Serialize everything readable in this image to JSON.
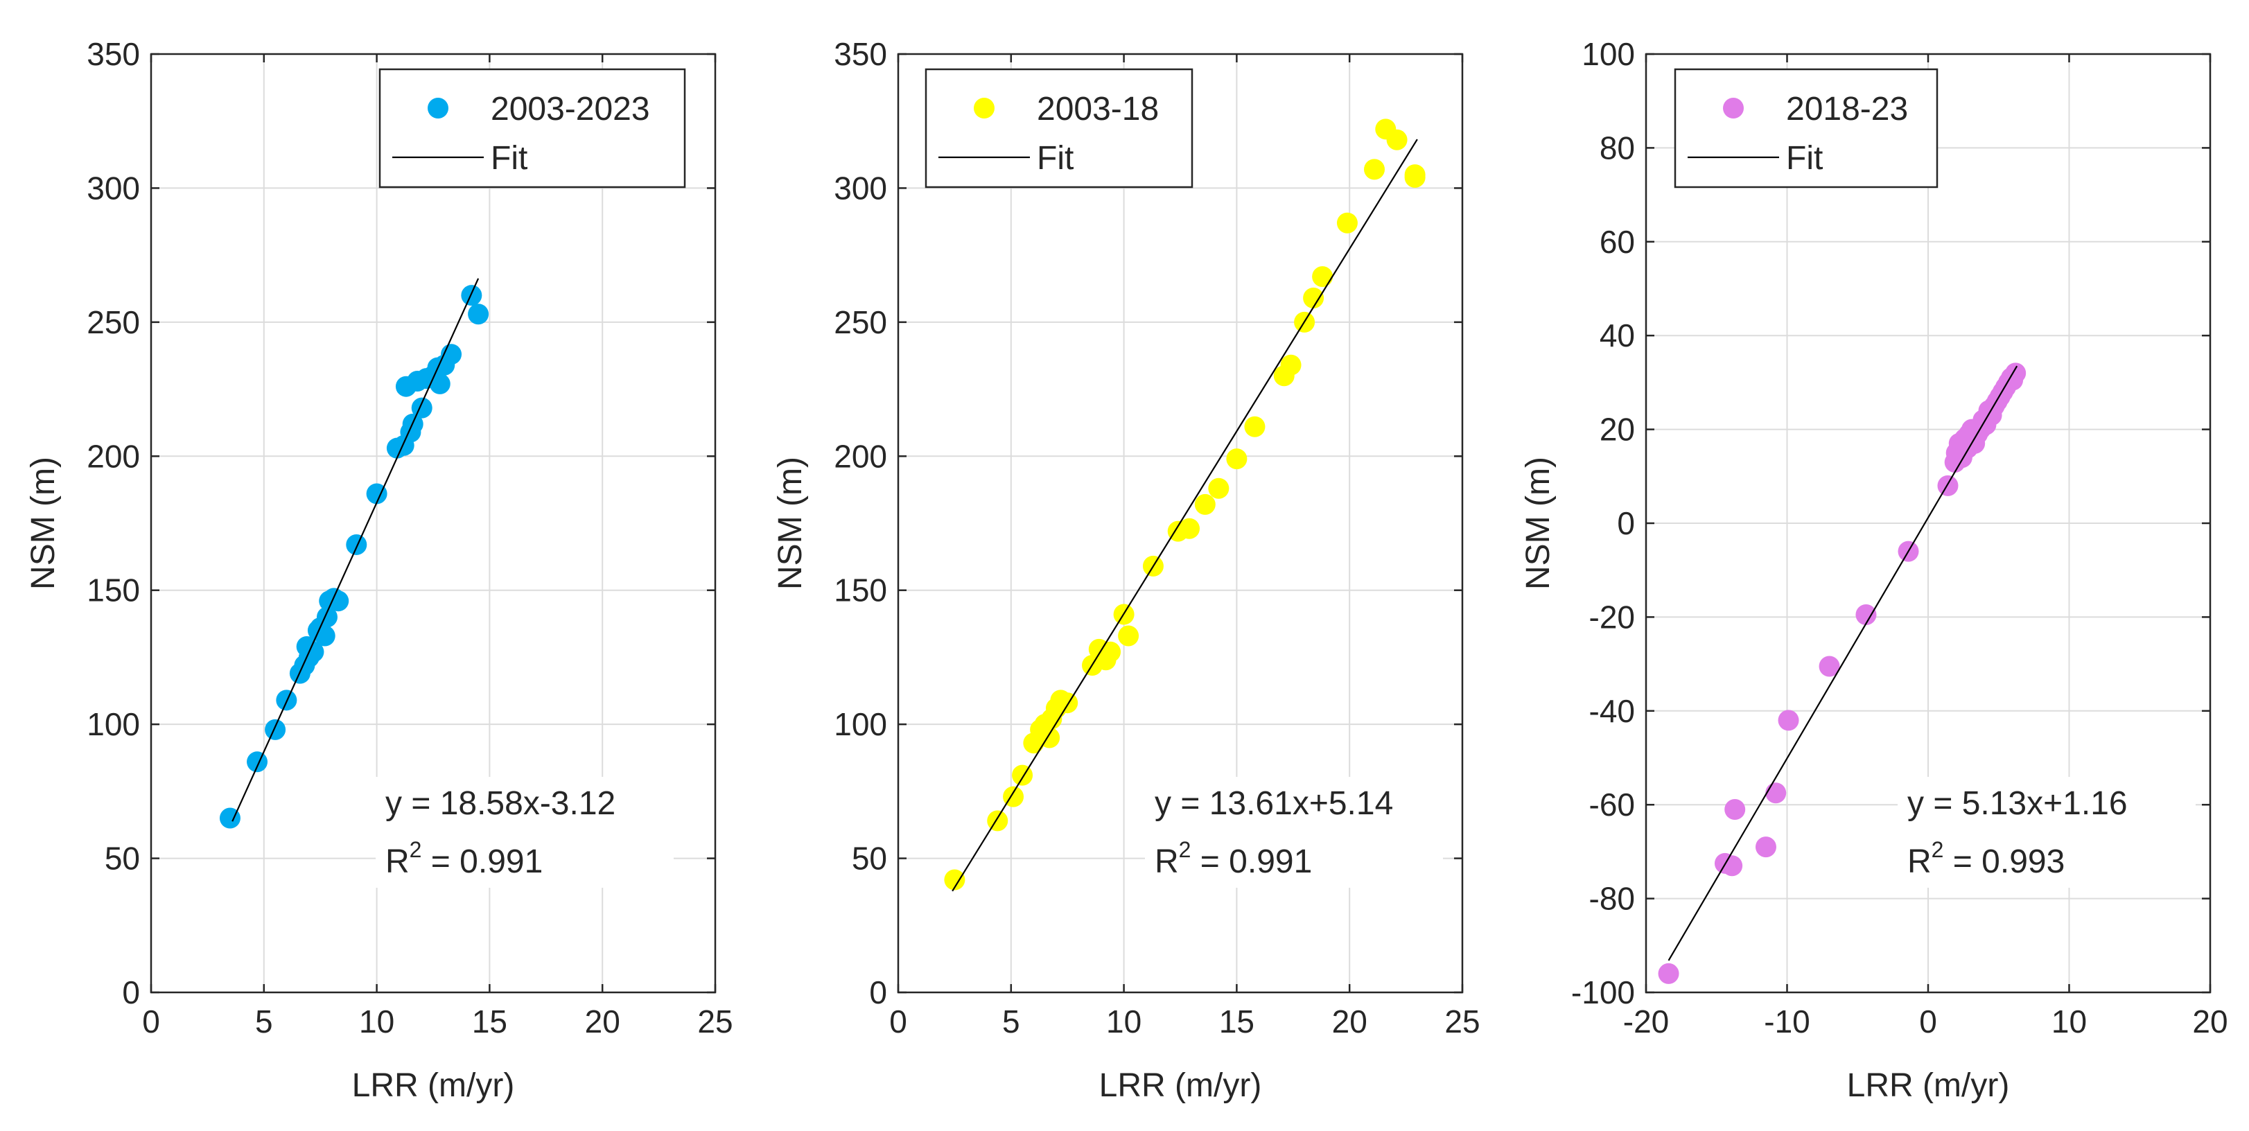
{
  "chart_data": [
    {
      "type": "scatter",
      "xlabel": "LRR (m/yr)",
      "ylabel": "NSM (m)",
      "xlim": [
        0,
        25
      ],
      "ylim": [
        0,
        350
      ],
      "xticks": [
        0,
        5,
        10,
        15,
        20,
        25
      ],
      "yticks": [
        0,
        50,
        100,
        150,
        200,
        250,
        300,
        350
      ],
      "grid": true,
      "legend_position": "top-right",
      "color": "#00aaee",
      "series": [
        {
          "name": "2003-2023",
          "x": [
            3.5,
            4.7,
            5.5,
            6.0,
            6.6,
            6.8,
            7.0,
            6.9,
            7.2,
            7.4,
            7.5,
            7.7,
            7.8,
            7.9,
            8.1,
            8.3,
            9.1,
            10.0,
            10.9,
            11.2,
            11.3,
            11.5,
            11.6,
            11.8,
            12.0,
            12.2,
            12.5,
            12.7,
            12.8,
            13.0,
            13.3,
            14.2,
            14.5
          ],
          "y": [
            65,
            86,
            98,
            109,
            119,
            122,
            125,
            129,
            127,
            135,
            136,
            133,
            140,
            146,
            147,
            146,
            167,
            186,
            203,
            204,
            226,
            209,
            212,
            228,
            218,
            229,
            230,
            233,
            227,
            234,
            238,
            260,
            253
          ]
        },
        {
          "name": "Fit",
          "type": "line",
          "x": [
            3.6,
            14.5
          ],
          "y": [
            63.8,
            266.3
          ]
        }
      ],
      "annotation": {
        "equation": "y = 18.58x-3.12",
        "r2_prefix": "R",
        "r2_sup": "2",
        "r2_value": " = 0.991"
      }
    },
    {
      "type": "scatter",
      "xlabel": "LRR (m/yr)",
      "ylabel": "NSM (m)",
      "xlim": [
        0,
        25
      ],
      "ylim": [
        0,
        350
      ],
      "xticks": [
        0,
        5,
        10,
        15,
        20,
        25
      ],
      "yticks": [
        0,
        50,
        100,
        150,
        200,
        250,
        300,
        350
      ],
      "grid": true,
      "legend_position": "top-left",
      "color": "#ffff00",
      "series": [
        {
          "name": "2003-18",
          "x": [
            2.5,
            4.4,
            5.1,
            5.5,
            6.0,
            6.3,
            6.5,
            6.7,
            6.8,
            7.0,
            7.2,
            7.5,
            8.6,
            8.9,
            9.2,
            9.4,
            10.0,
            10.2,
            11.3,
            12.4,
            12.9,
            13.6,
            14.2,
            15.0,
            15.8,
            17.1,
            17.4,
            18.0,
            18.4,
            18.8,
            19.9,
            21.1,
            21.6,
            22.1,
            22.9,
            22.9
          ],
          "y": [
            42,
            64,
            73,
            81,
            93,
            98,
            100,
            95,
            102,
            106,
            109,
            108,
            122,
            128,
            124,
            127,
            141,
            133,
            159,
            172,
            173,
            182,
            188,
            199,
            211,
            230,
            234,
            250,
            259,
            267,
            287,
            307,
            322,
            318,
            305,
            304
          ]
        },
        {
          "name": "Fit",
          "type": "line",
          "x": [
            2.4,
            23.0
          ],
          "y": [
            37.8,
            318.2
          ]
        }
      ],
      "annotation": {
        "equation": "y = 13.61x+5.14",
        "r2_prefix": "R",
        "r2_sup": "2",
        "r2_value": " = 0.991"
      }
    },
    {
      "type": "scatter",
      "xlabel": "LRR (m/yr)",
      "ylabel": "NSM (m)",
      "xlim": [
        -20,
        20
      ],
      "ylim": [
        -100,
        100
      ],
      "xticks": [
        -20,
        -10,
        0,
        10,
        20
      ],
      "yticks": [
        -100,
        -80,
        -60,
        -40,
        -20,
        0,
        20,
        40,
        60,
        80,
        100
      ],
      "grid": true,
      "legend_position": "top-left",
      "color": "#e07ce8",
      "series": [
        {
          "name": "2018-23",
          "x": [
            -18.4,
            -14.4,
            -13.9,
            -13.7,
            -11.5,
            -10.8,
            -9.9,
            -7.0,
            -4.4,
            -1.4,
            1.4,
            1.9,
            2.0,
            2.2,
            2.4,
            2.6,
            2.8,
            2.9,
            3.1,
            3.3,
            3.5,
            3.7,
            3.9,
            4.1,
            4.3,
            4.5,
            4.7,
            4.9,
            5.1,
            5.3,
            5.5,
            5.7,
            5.9,
            6.0,
            6.2
          ],
          "y": [
            -96,
            -72.5,
            -73,
            -61,
            -69,
            -57.5,
            -42,
            -30.5,
            -19.5,
            -6,
            8,
            13,
            15,
            17,
            14,
            18,
            16,
            19,
            20,
            17,
            19,
            20,
            22,
            21,
            24,
            23,
            25,
            26,
            27,
            28,
            29,
            30,
            31,
            30.5,
            32
          ]
        },
        {
          "name": "Fit",
          "type": "line",
          "x": [
            -18.4,
            6.3
          ],
          "y": [
            -93.2,
            33.5
          ]
        }
      ],
      "annotation": {
        "equation": "y = 5.13x+1.16",
        "r2_prefix": "R",
        "r2_sup": "2",
        "r2_value": " = 0.993"
      }
    }
  ]
}
